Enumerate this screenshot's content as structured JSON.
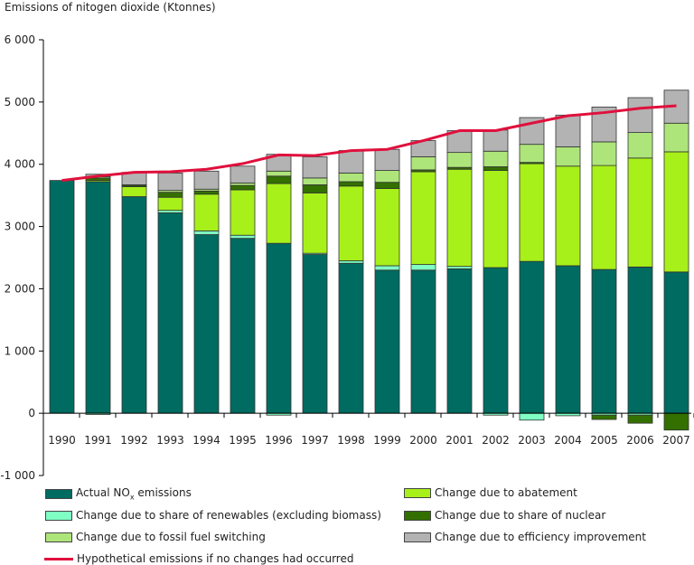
{
  "chart_data": {
    "type": "bar",
    "stacked": true,
    "title": "Emissions of nitogen dioxide (Ktonnes)",
    "xlabel": "",
    "ylabel": "",
    "ylim": [
      -1000,
      6000
    ],
    "yticks": [
      -1000,
      0,
      1000,
      2000,
      3000,
      4000,
      5000,
      6000
    ],
    "ytick_labels": [
      "-1 000",
      "0",
      "1 000",
      "2 000",
      "3 000",
      "4 000",
      "5 000",
      "6 000"
    ],
    "grid": false,
    "legend_position": "bottom",
    "categories": [
      "1990",
      "1991",
      "1992",
      "1993",
      "1994",
      "1995",
      "1996",
      "1997",
      "1998",
      "1999",
      "2000",
      "2001",
      "2002",
      "2003",
      "2004",
      "2005",
      "2006",
      "2007"
    ],
    "series": [
      {
        "key": "actual",
        "name": "Actual NOx emissions",
        "color": "#006b61",
        "values": [
          3740,
          3720,
          3480,
          3220,
          2870,
          2810,
          2730,
          2550,
          2410,
          2300,
          2300,
          2320,
          2340,
          2440,
          2370,
          2310,
          2350,
          2270
        ]
      },
      {
        "key": "renewables",
        "name": "Change due to share of renewables (excluding biomass)",
        "color": "#7fffc4",
        "values": [
          0,
          -20,
          0,
          40,
          60,
          50,
          -30,
          20,
          40,
          70,
          90,
          40,
          -30,
          -110,
          -40,
          -30,
          -30,
          0
        ]
      },
      {
        "key": "abatement",
        "name": "Change due to abatement",
        "color": "#a8f01a",
        "values": [
          0,
          20,
          160,
          210,
          590,
          730,
          960,
          970,
          1200,
          1240,
          1490,
          1560,
          1560,
          1570,
          1600,
          1670,
          1750,
          1930
        ]
      },
      {
        "key": "nuclear",
        "name": "Change due to share of nuclear",
        "color": "#337000",
        "values": [
          0,
          40,
          20,
          80,
          50,
          70,
          120,
          130,
          70,
          100,
          30,
          30,
          60,
          20,
          0,
          -70,
          -130,
          -270
        ]
      },
      {
        "key": "fuel_switching",
        "name": "Change due to fossil fuel switching",
        "color": "#aee57a",
        "values": [
          0,
          20,
          10,
          30,
          30,
          40,
          80,
          110,
          140,
          190,
          210,
          240,
          250,
          290,
          310,
          380,
          410,
          460
        ]
      },
      {
        "key": "efficiency",
        "name": "Change due to efficiency improvement",
        "color": "#b3b3b3",
        "values": [
          0,
          40,
          200,
          280,
          290,
          270,
          270,
          340,
          360,
          340,
          260,
          350,
          340,
          430,
          510,
          560,
          560,
          530
        ]
      }
    ],
    "line": {
      "name": "Hypothetical emissions if no changes had occurred",
      "color": "#e0103c",
      "values": [
        3740,
        3810,
        3870,
        3880,
        3920,
        4010,
        4150,
        4140,
        4220,
        4240,
        4380,
        4540,
        4540,
        4660,
        4780,
        4830,
        4900,
        4940
      ]
    }
  },
  "legend": {
    "actual_prefix": "Actual NO",
    "actual_sub": "x",
    "actual_suffix": " emissions",
    "renewables": "Change due to share of renewables (excluding biomass)",
    "fuel_switching": "Change due to fossil fuel switching",
    "hypothetical": "Hypothetical emissions if no changes had occurred",
    "abatement": "Change due to abatement",
    "nuclear": "Change due to share of nuclear",
    "efficiency": "Change due to efficiency improvement"
  }
}
